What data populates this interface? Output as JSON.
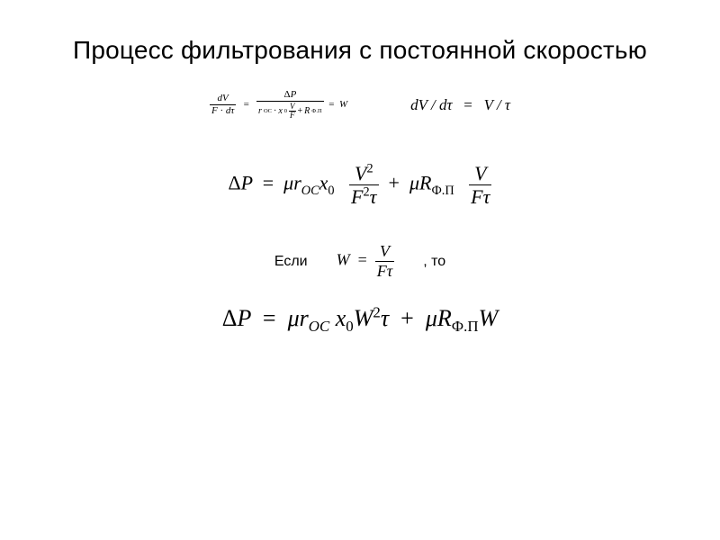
{
  "colors": {
    "background": "#ffffff",
    "text": "#000000",
    "rule": "#000000"
  },
  "typography": {
    "title_font": "Arial",
    "title_size_pt": 21,
    "math_font": "Times New Roman",
    "math_italic": true
  },
  "title": "Процесс фильтрования с постоянной скоростью",
  "row1": {
    "eqA": {
      "lhs_num": "dV",
      "lhs_den_left": "F",
      "lhs_den_dot": "·",
      "lhs_den_right": "dτ",
      "eq1": "=",
      "mid_num": "ΔP",
      "mid_den_prefix_r": "r",
      "mid_den_prefix_sub": "OC",
      "mid_den_dot": "·",
      "mid_den_x": "x",
      "mid_den_x_sub": "0",
      "mid_den_inner_num": "V",
      "mid_den_inner_den": "F",
      "mid_den_plus": "+",
      "mid_den_R": "R",
      "mid_den_R_sub": "Ф.П",
      "eq2": "=",
      "rhs": "W"
    },
    "eqB": {
      "lhs": "dV / dτ",
      "eq": "=",
      "rhs": "V / τ"
    }
  },
  "row2": {
    "Delta": "Δ",
    "P": "P",
    "eq": "=",
    "mu": "μ",
    "r": "r",
    "r_sub": "OC",
    "x": "x",
    "x_sub": "0",
    "frac1_num_base": "V",
    "frac1_num_exp": "2",
    "frac1_den_base": "F",
    "frac1_den_exp": "2",
    "frac1_den_tau": "τ",
    "plus": "+",
    "mu2": "μ",
    "R": "R",
    "R_sub": "Ф.П",
    "frac2_num": "V",
    "frac2_den_F": "F",
    "frac2_den_tau": "τ"
  },
  "row3": {
    "if": "Если",
    "W": "W",
    "eq": "=",
    "num": "V",
    "den_F": "F",
    "den_tau": "τ",
    "then": ", то"
  },
  "row4": {
    "Delta": "Δ",
    "P": "P",
    "eq": "=",
    "mu": "μ",
    "r": "r",
    "r_sub": "OC",
    "x": "x",
    "x_sub": "0",
    "W": "W",
    "W_exp": "2",
    "tau": "τ",
    "plus": "+",
    "mu2": "μ",
    "R": "R",
    "R_sub": "Ф.П",
    "W2": "W"
  }
}
